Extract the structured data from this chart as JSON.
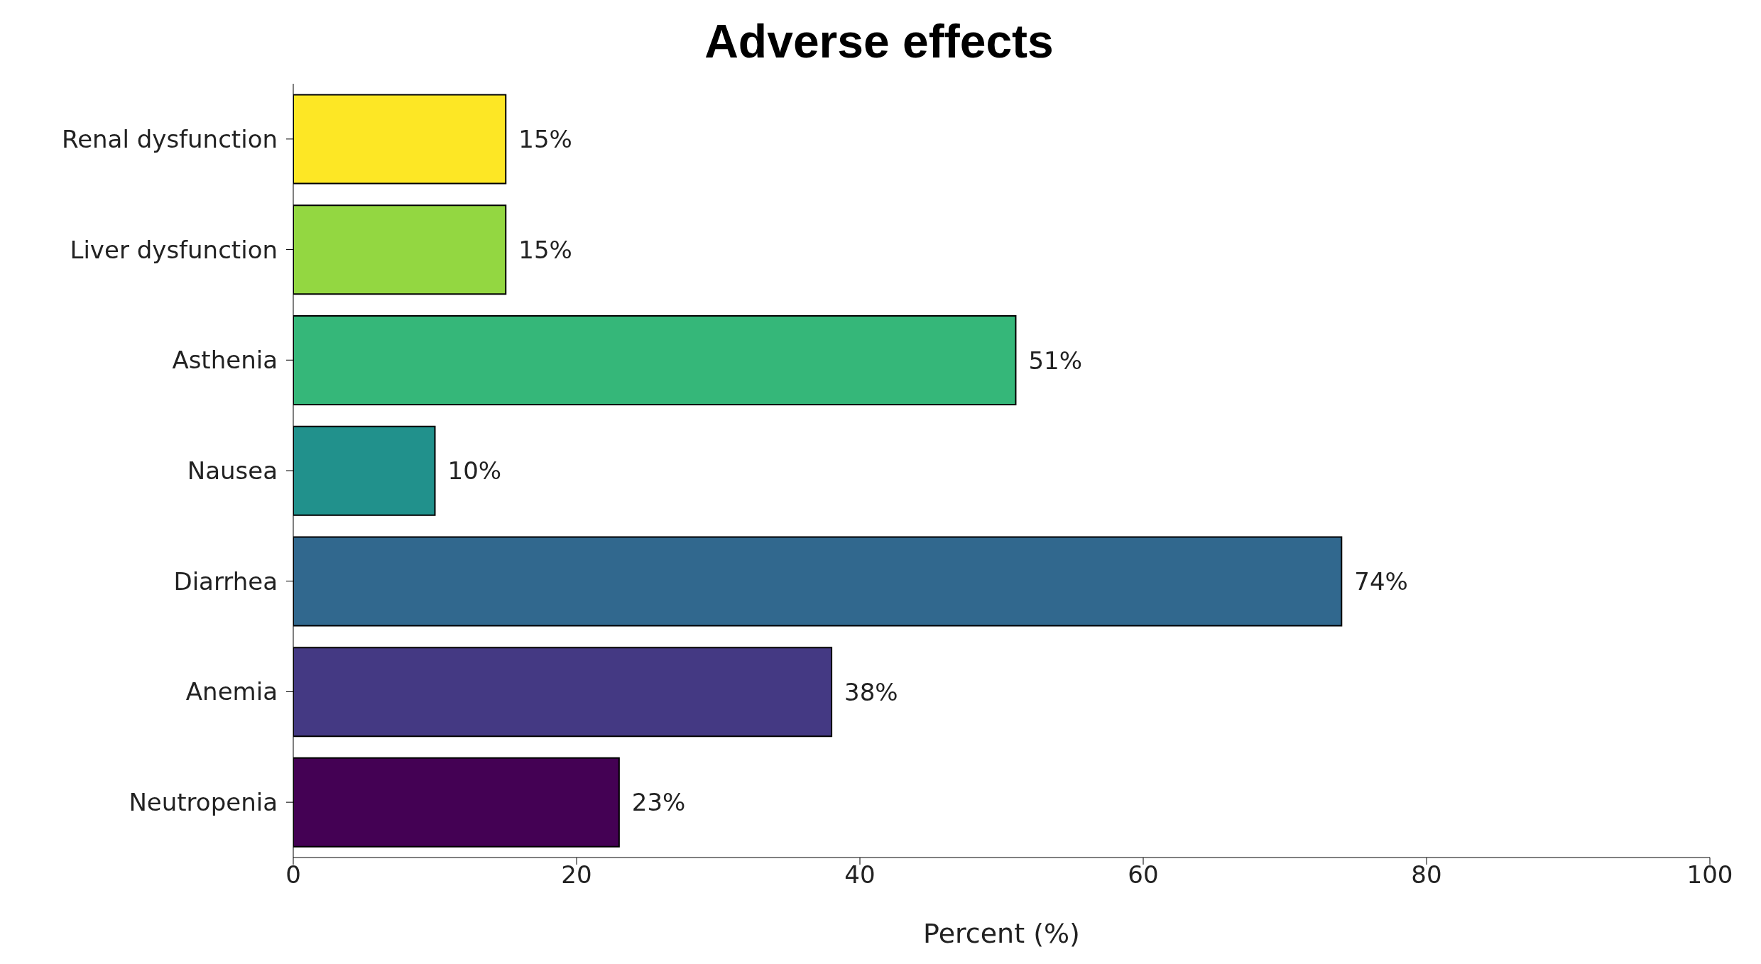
{
  "chart_data": {
    "type": "bar",
    "orientation": "horizontal",
    "title": "Adverse effects",
    "xlabel": "Percent (%)",
    "categories": [
      "Renal dysfunction",
      "Liver dysfunction",
      "Asthenia",
      "Nausea",
      "Diarrhea",
      "Anemia",
      "Neutropenia"
    ],
    "values": [
      15,
      15,
      51,
      10,
      74,
      38,
      23
    ],
    "colors": [
      "#fde725",
      "#93d741",
      "#35b779",
      "#21918c",
      "#31688e",
      "#443983",
      "#440154"
    ],
    "value_labels": [
      "15%",
      "15%",
      "51%",
      "10%",
      "74%",
      "38%",
      "23%"
    ],
    "xlim": [
      0,
      100
    ],
    "xticks": [
      0,
      20,
      40,
      60,
      80,
      100
    ],
    "grid": false
  }
}
